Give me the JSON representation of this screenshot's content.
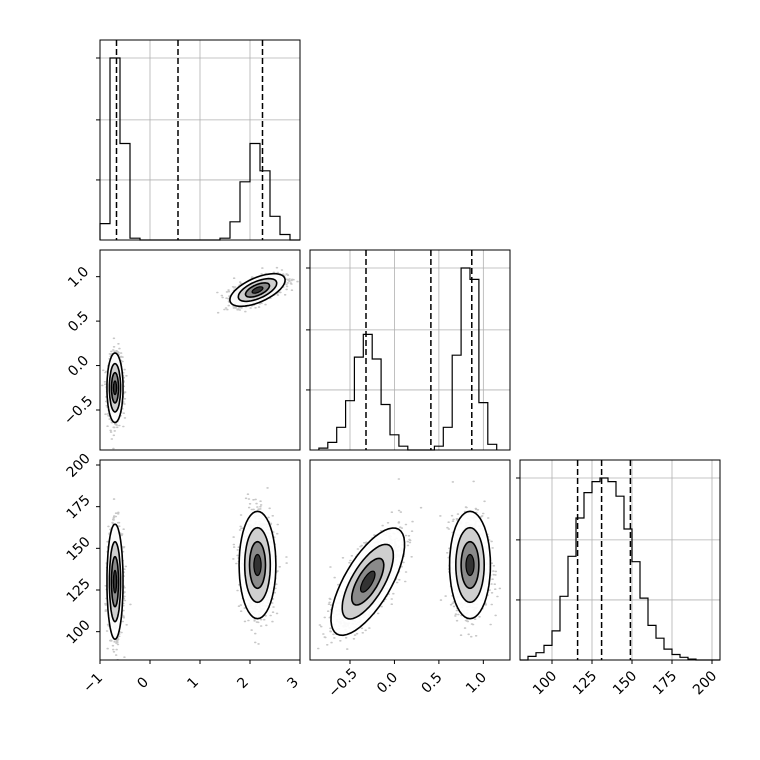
{
  "chart_data": [
    {
      "panel": "param1-histogram",
      "type": "histogram",
      "xlim": [
        -1,
        3
      ],
      "grid": true,
      "quantile_lines": [
        -0.67,
        0.56,
        2.25
      ],
      "bin_edges": [
        -1.0,
        -0.8,
        -0.6,
        -0.4,
        -0.2,
        0.0,
        0.2,
        0.4,
        0.6,
        0.8,
        1.0,
        1.2,
        1.4,
        1.6,
        1.8,
        2.0,
        2.2,
        2.4,
        2.6,
        2.8,
        3.0
      ],
      "counts": [
        0.09,
        1.0,
        0.53,
        0.01,
        0,
        0,
        0,
        0,
        0,
        0,
        0,
        0,
        0.01,
        0.1,
        0.32,
        0.53,
        0.38,
        0.13,
        0.03,
        0
      ]
    },
    {
      "panel": "param2-vs-param1",
      "type": "contour-density",
      "xlim": [
        -1,
        3
      ],
      "ylim": [
        -0.95,
        1.3
      ],
      "yticks": [
        "1.0",
        "0.5",
        "0.0",
        "−0.5"
      ],
      "clusters": [
        {
          "cx": -0.7,
          "cy": -0.25,
          "sx": 0.07,
          "sy": 0.17,
          "rho": 0,
          "n": 1300
        },
        {
          "cx": 2.15,
          "cy": 0.85,
          "sx": 0.24,
          "sy": 0.08,
          "rho": 0.6,
          "n": 1300
        }
      ]
    },
    {
      "panel": "param2-histogram",
      "type": "histogram",
      "xlim": [
        -0.95,
        1.3
      ],
      "grid": true,
      "quantile_lines": [
        -0.32,
        0.41,
        0.87
      ],
      "bin_edges": [
        -0.85,
        -0.75,
        -0.65,
        -0.55,
        -0.45,
        -0.35,
        -0.25,
        -0.15,
        -0.05,
        0.05,
        0.15,
        0.25,
        0.35,
        0.45,
        0.55,
        0.65,
        0.75,
        0.85,
        0.95,
        1.05,
        1.15
      ],
      "counts": [
        0.01,
        0.04,
        0.12,
        0.26,
        0.49,
        0.61,
        0.48,
        0.24,
        0.08,
        0.02,
        0,
        0,
        0,
        0.02,
        0.12,
        0.5,
        0.96,
        0.9,
        0.25,
        0.03
      ]
    },
    {
      "panel": "param3-vs-param1",
      "type": "contour-density",
      "xlim": [
        -1,
        3
      ],
      "ylim": [
        83,
        203
      ],
      "xticks": [
        "−1",
        "0",
        "1",
        "2",
        "3"
      ],
      "yticks": [
        "200",
        "175",
        "150",
        "125",
        "100"
      ],
      "clusters": [
        {
          "cx": -0.7,
          "cy": 130,
          "sx": 0.07,
          "sy": 15,
          "rho": 0,
          "n": 1300
        },
        {
          "cx": 2.15,
          "cy": 140,
          "sx": 0.16,
          "sy": 14,
          "rho": 0,
          "n": 1300
        }
      ]
    },
    {
      "panel": "param3-vs-param2",
      "type": "contour-density",
      "xlim": [
        -0.95,
        1.3
      ],
      "ylim": [
        83,
        203
      ],
      "xticks": [
        "−0.5",
        "0.0",
        "0.5",
        "1.0"
      ],
      "clusters": [
        {
          "cx": -0.3,
          "cy": 130,
          "sx": 0.18,
          "sy": 14,
          "rho": 0.7,
          "n": 1300
        },
        {
          "cx": 0.85,
          "cy": 140,
          "sx": 0.1,
          "sy": 14,
          "rho": 0,
          "n": 1300
        }
      ]
    },
    {
      "panel": "param3-histogram",
      "type": "histogram",
      "xlim": [
        80,
        205
      ],
      "grid": true,
      "xticks": [
        "100",
        "125",
        "150",
        "175",
        "200"
      ],
      "quantile_lines": [
        116,
        131,
        149
      ],
      "bin_edges": [
        80,
        85,
        90,
        95,
        100,
        105,
        110,
        115,
        120,
        125,
        130,
        135,
        140,
        145,
        150,
        155,
        160,
        165,
        170,
        175,
        180,
        185,
        190,
        195,
        200,
        205
      ],
      "counts": [
        0,
        0.02,
        0.04,
        0.08,
        0.16,
        0.35,
        0.57,
        0.78,
        0.92,
        0.98,
        1.0,
        0.98,
        0.9,
        0.72,
        0.54,
        0.34,
        0.19,
        0.12,
        0.06,
        0.03,
        0.015,
        0.005,
        0,
        0,
        0
      ]
    }
  ]
}
